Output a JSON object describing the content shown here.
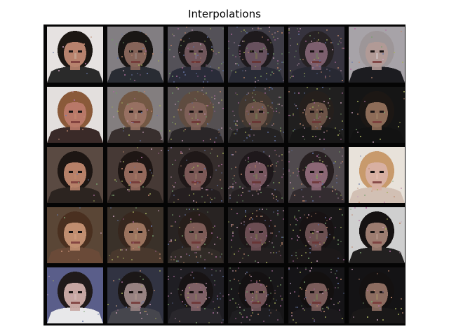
{
  "title": "Interpolations",
  "grid": {
    "rows": [
      {
        "row_id": "row-1",
        "cells": [
          {
            "bg": "#e6e2e1",
            "skin": "#b7826d",
            "hair": "#1c1713",
            "shirt": "#2a2a2a",
            "accent": "#c9b3a0",
            "noise": 0.05
          },
          {
            "bg": "#8a8589",
            "skin": "#8d6a5e",
            "hair": "#1b1816",
            "shirt": "#2c2f36",
            "accent": "#a18d88",
            "noise": 0.2
          },
          {
            "bg": "#5e5b63",
            "skin": "#7d6066",
            "hair": "#201c1d",
            "shirt": "#2f3140",
            "accent": "#8d7d90",
            "noise": 0.4
          },
          {
            "bg": "#494652",
            "skin": "#795f6e",
            "hair": "#231f22",
            "shirt": "#30333f",
            "accent": "#8f8a5c",
            "noise": 0.55
          },
          {
            "bg": "#3d3a46",
            "skin": "#8c6b7c",
            "hair": "#2c2729",
            "shirt": "#2d2f3a",
            "accent": "#7f8f6a",
            "noise": 0.45
          },
          {
            "bg": "#a7a3a8",
            "skin": "#b19a96",
            "hair": "#9d9698",
            "shirt": "#1c1c20",
            "accent": "#d0c8c8",
            "noise": 0.1
          }
        ]
      },
      {
        "row_id": "row-2",
        "cells": [
          {
            "bg": "#e3dfdd",
            "skin": "#b87868",
            "hair": "#8a5a3a",
            "shirt": "#3a2a28",
            "accent": "#c78a72",
            "noise": 0.05
          },
          {
            "bg": "#8b8586",
            "skin": "#a07768",
            "hair": "#7a5d48",
            "shirt": "#3b3231",
            "accent": "#b69480",
            "noise": 0.2
          },
          {
            "bg": "#5f5a5c",
            "skin": "#8d6a61",
            "hair": "#6a5548",
            "shirt": "#2f2b2d",
            "accent": "#9a8a70",
            "noise": 0.4
          },
          {
            "bg": "#3f3d3e",
            "skin": "#806357",
            "hair": "#4c4039",
            "shirt": "#2a2829",
            "accent": "#8a9460",
            "noise": 0.55
          },
          {
            "bg": "#242323",
            "skin": "#7a5e50",
            "hair": "#2a2320",
            "shirt": "#1c1c1c",
            "accent": "#7d8a5a",
            "noise": 0.45
          },
          {
            "bg": "#151515",
            "skin": "#8d6c58",
            "hair": "#1c1714",
            "shirt": "#121212",
            "accent": "#a08468",
            "noise": 0.1
          }
        ]
      },
      {
        "row_id": "row-3",
        "cells": [
          {
            "bg": "#5a4a42",
            "skin": "#b68068",
            "hair": "#1d1613",
            "shirt": "#2c2420",
            "accent": "#c28b6e",
            "noise": 0.05
          },
          {
            "bg": "#4a3d38",
            "skin": "#9b6e60",
            "hair": "#201816",
            "shirt": "#2b2320",
            "accent": "#b0846e",
            "noise": 0.2
          },
          {
            "bg": "#3b3331",
            "skin": "#8a6260",
            "hair": "#231b1b",
            "shirt": "#2a2324",
            "accent": "#a08070",
            "noise": 0.4
          },
          {
            "bg": "#3a3436",
            "skin": "#8c6670",
            "hair": "#241d20",
            "shirt": "#2c2628",
            "accent": "#9a9466",
            "noise": 0.55
          },
          {
            "bg": "#5a5458",
            "skin": "#9d7484",
            "hair": "#2c2326",
            "shirt": "#3a3236",
            "accent": "#a8a070",
            "noise": 0.45
          },
          {
            "bg": "#e8e2da",
            "skin": "#d8b0a2",
            "hair": "#c89a6c",
            "shirt": "#d2c0b4",
            "accent": "#e6c0b0",
            "noise": 0.1
          }
        ]
      },
      {
        "row_id": "row-4",
        "cells": [
          {
            "bg": "#5a4636",
            "skin": "#c08e70",
            "hair": "#4a3020",
            "shirt": "#6a4a38",
            "accent": "#d4a080",
            "noise": 0.05
          },
          {
            "bg": "#3e342c",
            "skin": "#a47a64",
            "hair": "#3a2a20",
            "shirt": "#4d3b30",
            "accent": "#b89272",
            "noise": 0.2
          },
          {
            "bg": "#2d2826",
            "skin": "#8b6660",
            "hair": "#2c221e",
            "shirt": "#37302c",
            "accent": "#9a8a6a",
            "noise": 0.4
          },
          {
            "bg": "#252224",
            "skin": "#7d5a60",
            "hair": "#231b1c",
            "shirt": "#2b2526",
            "accent": "#8f8a5e",
            "noise": 0.55
          },
          {
            "bg": "#1c1a1b",
            "skin": "#7a5a5c",
            "hair": "#1a1516",
            "shirt": "#201c1d",
            "accent": "#8a7e62",
            "noise": 0.45
          },
          {
            "bg": "#cfcfcf",
            "skin": "#9c7c70",
            "hair": "#161212",
            "shirt": "#222020",
            "accent": "#b89a8a",
            "noise": 0.1
          }
        ]
      },
      {
        "row_id": "row-5",
        "cells": [
          {
            "bg": "#5a5e8a",
            "skin": "#c6a6a2",
            "hair": "#201a1a",
            "shirt": "#e8e8ea",
            "accent": "#d8c0bc",
            "noise": 0.05
          },
          {
            "bg": "#343646",
            "skin": "#a08a88",
            "hair": "#1d1919",
            "shirt": "#4a4a52",
            "accent": "#b8a098",
            "noise": 0.2
          },
          {
            "bg": "#232228",
            "skin": "#8e6c72",
            "hair": "#1a1617",
            "shirt": "#2e2c32",
            "accent": "#9a8a6c",
            "noise": 0.4
          },
          {
            "bg": "#1c1b1e",
            "skin": "#866468",
            "hair": "#181415",
            "shirt": "#242226",
            "accent": "#8f8a60",
            "noise": 0.55
          },
          {
            "bg": "#18171a",
            "skin": "#8a6866",
            "hair": "#161213",
            "shirt": "#1f1d20",
            "accent": "#8a8e5e",
            "noise": 0.45
          },
          {
            "bg": "#141315",
            "skin": "#8c6c60",
            "hair": "#141111",
            "shirt": "#1a1818",
            "accent": "#a08a66",
            "noise": 0.15
          }
        ]
      }
    ]
  }
}
